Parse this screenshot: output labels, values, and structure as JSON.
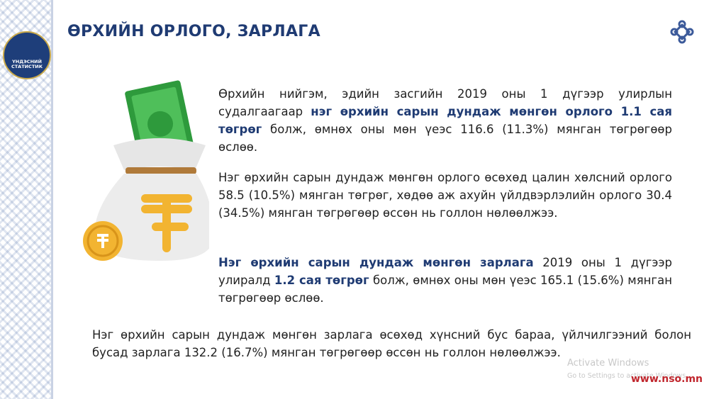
{
  "header": {
    "title": "ӨРХИЙН ОРЛОГО, ЗАРЛАГА"
  },
  "logo_text": "ҮНДЭСНИЙ СТАТИСТИК",
  "paragraphs": [
    [
      {
        "text": "Өрхийн нийгэм, эдийн засгийн 2019 оны 1 дүгээр улирлын судалгаагаар ",
        "bold": false
      },
      {
        "text": "нэг өрхийн сарын дундаж мөнгөн орлого 1.1 сая төгрөг",
        "bold": true
      },
      {
        "text": " болж, өмнөх оны мөн үеэс 116.6 (11.3%) мянган төгрөгөөр өслөө.",
        "bold": false
      }
    ],
    [
      {
        "text": "Нэг өрхийн сарын дундаж мөнгөн орлого өсөхөд цалин хөлсний орлого 58.5 (10.5%) мянган төгрөг, хөдөө аж ахуйн үйлдвэрлэлийн орлого 30.4 (34.5%) мянган төгрөгөөр өссөн нь голлон нөлөөлжээ.",
        "bold": false
      }
    ],
    [
      {
        "text": "Нэг өрхийн сарын дундаж мөнгөн зарлага",
        "bold": true
      },
      {
        "text": " 2019 оны 1 дүгээр улиралд ",
        "bold": false
      },
      {
        "text": "1.2 сая төгрөг",
        "bold": true
      },
      {
        "text": " болж, өмнөх оны мөн үеэс 165.1 (15.6%) мянган төгрөгөөр өслөө.",
        "bold": false
      }
    ],
    [
      {
        "text": "Нэг өрхийн сарын дундаж мөнгөн зарлага өсөхөд хүнсний бус бараа, үйлчилгээний болон бусад зарлага 132.2 (16.7%) мянган төгрөгөөр өссөн нь голлон нөлөөлжээ.",
        "bold": false
      }
    ]
  ],
  "watermark": {
    "title": "Activate Windows",
    "note": "Go to Settings to activate Windows."
  },
  "footer": {
    "website": "www.nso.mn"
  }
}
